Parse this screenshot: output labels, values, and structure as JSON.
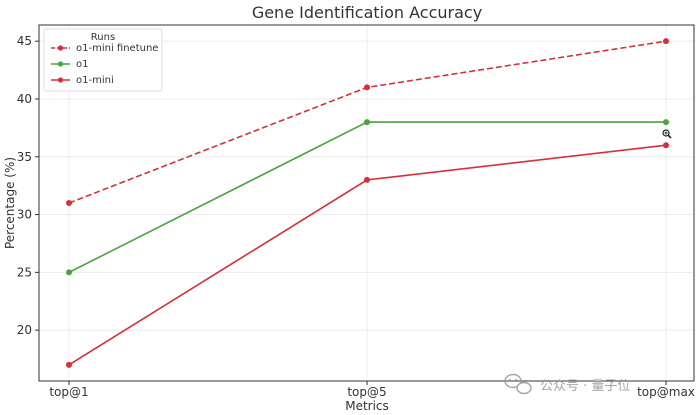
{
  "chart_data": {
    "type": "line",
    "title": "Gene Identification Accuracy",
    "xlabel": "Metrics",
    "ylabel": "Percentage (%)",
    "categories": [
      "top@1",
      "top@5",
      "top@max"
    ],
    "ylim": [
      15.6,
      46.4
    ],
    "yticks": [
      20,
      25,
      30,
      35,
      40,
      45
    ],
    "grid": true,
    "legend": {
      "title": "Runs",
      "placement": "top-left"
    },
    "series": [
      {
        "name": "o1-mini finetune",
        "values": [
          31,
          41,
          45
        ],
        "color": "#d62f3a",
        "style": "dashed"
      },
      {
        "name": "o1",
        "values": [
          25,
          38,
          38
        ],
        "color": "#49a43d",
        "style": "solid"
      },
      {
        "name": "o1-mini",
        "values": [
          17,
          33,
          36
        ],
        "color": "#d62f3a",
        "style": "solid"
      }
    ]
  },
  "watermark": {
    "text": "公众号 · 量子位",
    "icon": "wechat-icon"
  },
  "cursor": {
    "icon": "zoom-in-cursor-icon"
  }
}
